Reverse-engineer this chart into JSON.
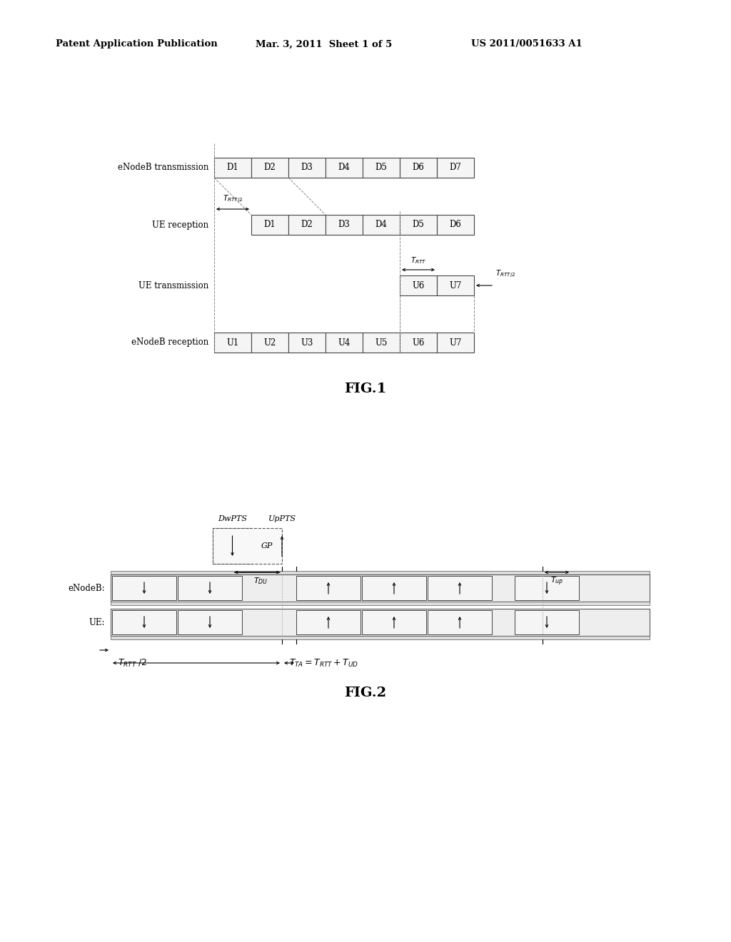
{
  "header_left": "Patent Application Publication",
  "header_mid": "Mar. 3, 2011  Sheet 1 of 5",
  "header_right": "US 2011/0051633 A1",
  "fig1_label": "FIG.1",
  "fig2_label": "FIG.2",
  "bg_color": "#ffffff",
  "row_labels_fig1": [
    "eNodeB transmission",
    "UE reception",
    "UE transmission",
    "eNodeB reception"
  ],
  "enodeb_tx_labels": [
    "D1",
    "D2",
    "D3",
    "D4",
    "D5",
    "D6",
    "D7"
  ],
  "ue_rx_labels": [
    "D1",
    "D2",
    "D3",
    "D4",
    "D5",
    "D6"
  ],
  "ue_tx_labels": [
    "U6",
    "U7"
  ],
  "enodeb_rx_labels": [
    "U1",
    "U2",
    "U3",
    "U4",
    "U5",
    "U6",
    "U7"
  ]
}
